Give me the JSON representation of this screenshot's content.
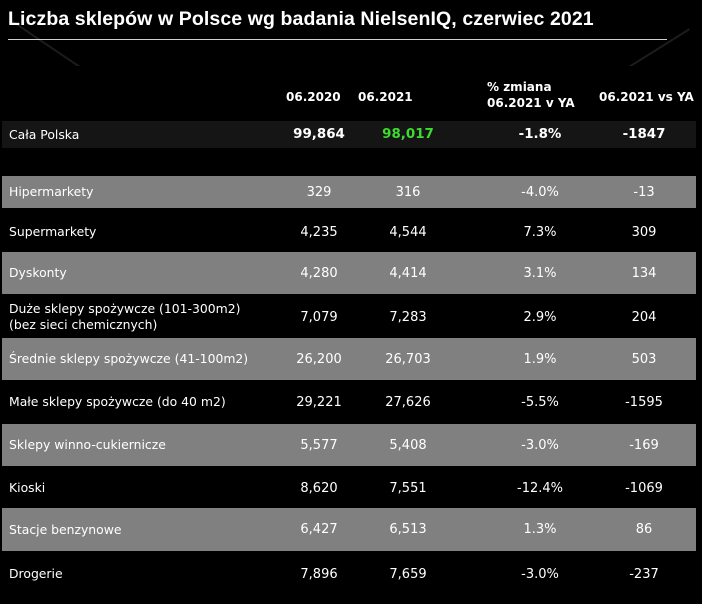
{
  "title": "Liczba sklepów w Polsce wg badania NielsenIQ, czerwiec 2021",
  "headers": {
    "col1": "06.2020",
    "col2": "06.2021",
    "col3_line1": "% zmiana",
    "col3_line2": "06.2021 v YA",
    "col4": "06.2021 vs  YA"
  },
  "total": {
    "label": "Cała Polska",
    "v2020": "99,864",
    "v2021": "98,017",
    "pct": "-1.8%",
    "diff": "-1847",
    "highlight_color": "#3ddc2f"
  },
  "rows": [
    {
      "label": "Hipermarkety",
      "v2020": "329",
      "v2021": "316",
      "pct": "-4.0%",
      "diff": "-13"
    },
    {
      "label": "Supermarkety",
      "v2020": "4,235",
      "v2021": "4,544",
      "pct": "7.3%",
      "diff": "309"
    },
    {
      "label": "Dyskonty",
      "v2020": "4,280",
      "v2021": "4,414",
      "pct": "3.1%",
      "diff": "134"
    },
    {
      "label": "Duże sklepy spożywcze (101-300m2) (bez sieci chemicznych)",
      "v2020": "7,079",
      "v2021": "7,283",
      "pct": "2.9%",
      "diff": "204"
    },
    {
      "label": "Średnie sklepy spożywcze (41-100m2)",
      "v2020": "26,200",
      "v2021": "26,703",
      "pct": "1.9%",
      "diff": "503"
    },
    {
      "label": "Małe sklepy spożywcze (do 40 m2)",
      "v2020": "29,221",
      "v2021": "27,626",
      "pct": "-5.5%",
      "diff": "-1595"
    },
    {
      "label": "Sklepy winno-cukiernicze",
      "v2020": "5,577",
      "v2021": "5,408",
      "pct": "-3.0%",
      "diff": "-169"
    },
    {
      "label": "Kioski",
      "v2020": "8,620",
      "v2021": "7,551",
      "pct": "-12.4%",
      "diff": "-1069"
    },
    {
      "label": "Stacje benzynowe",
      "v2020": "6,427",
      "v2021": "6,513",
      "pct": "1.3%",
      "diff": "86"
    },
    {
      "label": "Drogerie",
      "v2020": "7,896",
      "v2021": "7,659",
      "pct": "-3.0%",
      "diff": "-237"
    }
  ],
  "colors": {
    "background": "#000000",
    "row_grey": "#808080",
    "accent_green": "#3ddc2f"
  }
}
